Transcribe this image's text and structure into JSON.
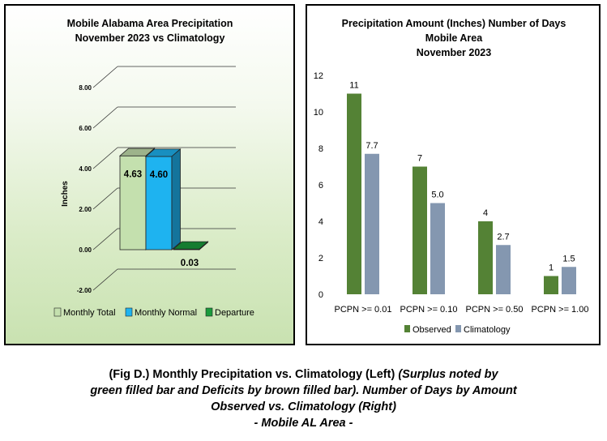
{
  "chart_data": [
    {
      "type": "bar",
      "title": "Mobile Alabama Area Precipitation",
      "subtitle": "November 2023 vs Climatology",
      "ylabel": "Inches",
      "yticks": [
        "-2.00",
        "0.00",
        "2.00",
        "4.00",
        "6.00",
        "8.00"
      ],
      "ylim": [
        -2,
        8
      ],
      "categories": [
        "Monthly Total",
        "Monthly Normal",
        "Departure"
      ],
      "values": [
        4.63,
        4.6,
        0.03
      ],
      "value_labels": [
        "4.63",
        "4.60",
        "0.03"
      ],
      "colors": [
        "#c4e0ae",
        "#1eb3f0",
        "#1a9b3c"
      ],
      "legend_position": "bottom",
      "grid": true
    },
    {
      "type": "bar",
      "title": "Precipitation Amount (Inches) Number of Days",
      "subtitle": "Mobile Area",
      "subtitle2": "November 2023",
      "categories": [
        "PCPN >= 0.01",
        "PCPN >= 0.10",
        "PCPN >= 0.50",
        "PCPN >= 1.00"
      ],
      "yticks": [
        "0",
        "2",
        "4",
        "6",
        "8",
        "10",
        "12"
      ],
      "ylim": [
        0,
        12
      ],
      "series": [
        {
          "name": "Observed",
          "values": [
            11,
            7,
            4,
            1
          ],
          "labels": [
            "11",
            "7",
            "4",
            "1"
          ],
          "color": "#548235"
        },
        {
          "name": "Climatology",
          "values": [
            7.7,
            5.0,
            2.7,
            1.5
          ],
          "labels": [
            "7.7",
            "5.0",
            "2.7",
            "1.5"
          ],
          "color": "#8497b0"
        }
      ],
      "legend_position": "bottom",
      "grid": false
    }
  ],
  "caption": {
    "line1_normal": "(Fig D.) Monthly Precipitation vs. Climatology (Left) ",
    "line1_italic": "(Surplus noted by",
    "line2": "green filled bar and Deficits by brown filled bar). Number of Days by Amount",
    "line3": "Observed vs. Climatology (Right)",
    "line4": "- Mobile AL Area -"
  }
}
